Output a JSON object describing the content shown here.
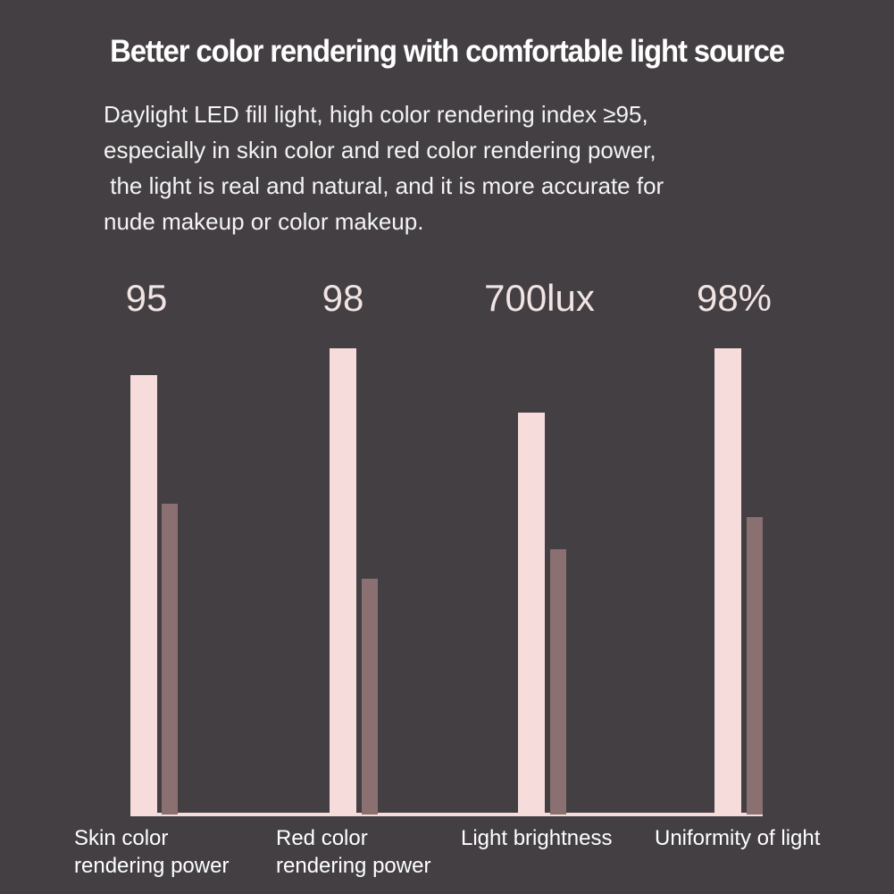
{
  "title": "Better color rendering with comfortable light source",
  "description_lines": [
    "Daylight LED fill light, high color rendering index ≥95,",
    "especially in skin color and red color rendering power,",
    " the light is real and natural, and it is more accurate for",
    "nude makeup or color makeup."
  ],
  "colors": {
    "background": "#433f42",
    "primary_bar": "#f7dcdc",
    "secondary_bar": "#8b7071",
    "baseline": "#f7dcdc"
  },
  "chart_data": {
    "type": "bar",
    "categories": [
      [
        "Skin color",
        "rendering power"
      ],
      [
        "Red color",
        "rendering power"
      ],
      [
        "Light brightness"
      ],
      [
        "Uniformity of light"
      ]
    ],
    "value_labels": [
      "95",
      "98",
      "700lux",
      "98%"
    ],
    "series": [
      {
        "values": [
          0.82,
          0.87,
          0.75,
          0.87
        ]
      },
      {
        "values": [
          0.58,
          0.44,
          0.495,
          0.555
        ]
      }
    ],
    "title": "",
    "xlabel": "",
    "ylabel": "",
    "ylim": [
      0,
      1
    ],
    "grid": false,
    "legend": "none"
  }
}
